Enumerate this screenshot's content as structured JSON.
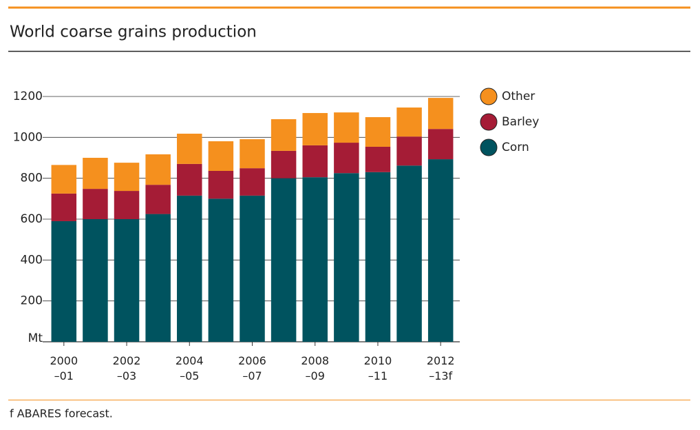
{
  "chart_data": {
    "type": "stacked_bar",
    "title": "World coarse grains production",
    "categories": [
      "2000\n–01",
      null,
      "2002\n–03",
      null,
      "2004\n–05",
      null,
      "2006\n–07",
      null,
      "2008\n–09",
      null,
      "2010\n–11",
      null,
      "2012\n–13f"
    ],
    "series": [
      {
        "name": "Corn",
        "color": "#00535f",
        "values": [
          590,
          600,
          600,
          625,
          715,
          700,
          715,
          800,
          805,
          825,
          830,
          862,
          893
        ]
      },
      {
        "name": "Barley",
        "color": "#a51c36",
        "values": [
          135,
          148,
          138,
          143,
          155,
          136,
          134,
          134,
          156,
          149,
          124,
          142,
          148
        ]
      },
      {
        "name": "Other",
        "color": "#f5901e",
        "values": [
          140,
          152,
          138,
          149,
          148,
          145,
          142,
          155,
          158,
          148,
          145,
          142,
          152
        ]
      }
    ],
    "ylim": [
      0,
      1200
    ],
    "yticks": [
      {
        "value": 0,
        "label": "Mt"
      },
      200,
      400,
      600,
      800,
      1000,
      1200
    ],
    "grid": true,
    "footnote": "f ABARES forecast."
  }
}
